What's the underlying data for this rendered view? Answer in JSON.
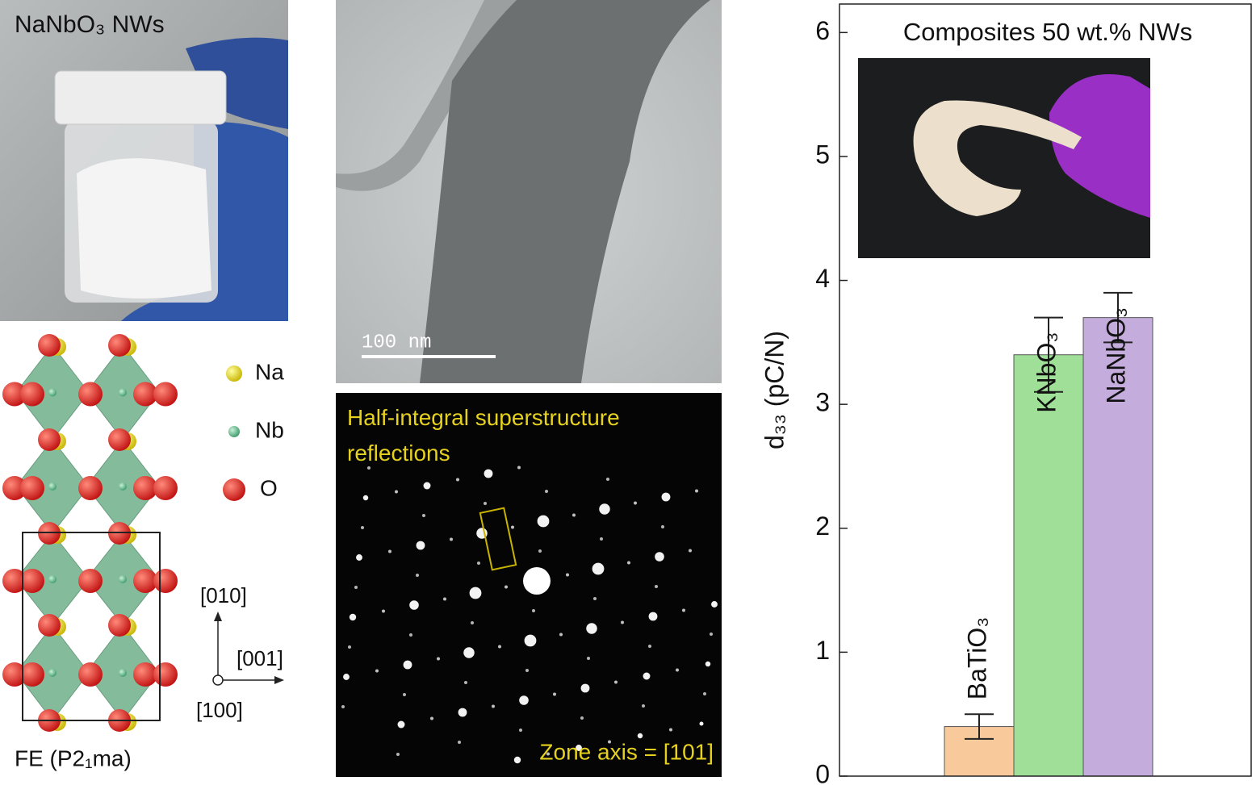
{
  "panels": {
    "photo": {
      "label": "NaNbO₃ NWs"
    },
    "structure": {
      "legend": [
        "Na",
        "Nb",
        "O"
      ],
      "axes": [
        "[010]",
        "[001]",
        "[100]"
      ],
      "caption": "FE (P2₁ma)"
    },
    "tem": {
      "scale_bar": "100 nm"
    },
    "diffraction": {
      "annotation": "Half-integral superstructure reflections",
      "zone_axis": "Zone axis = [101]"
    }
  },
  "chart_data": {
    "type": "bar",
    "title": "Composites 50 wt.% NWs",
    "ylabel": "d₃₃ (pC/N)",
    "categories": [
      "BaTiO₃",
      "KNbO₃",
      "NaNbO₃"
    ],
    "values": [
      0.4,
      3.4,
      3.7
    ],
    "errors": [
      0.1,
      0.3,
      0.2
    ],
    "colors": [
      "#f7c99b",
      "#a0df98",
      "#c4acdc"
    ],
    "ylim": [
      0,
      6.23
    ],
    "yticks": [
      0,
      1,
      2,
      3,
      4,
      5,
      6
    ]
  }
}
